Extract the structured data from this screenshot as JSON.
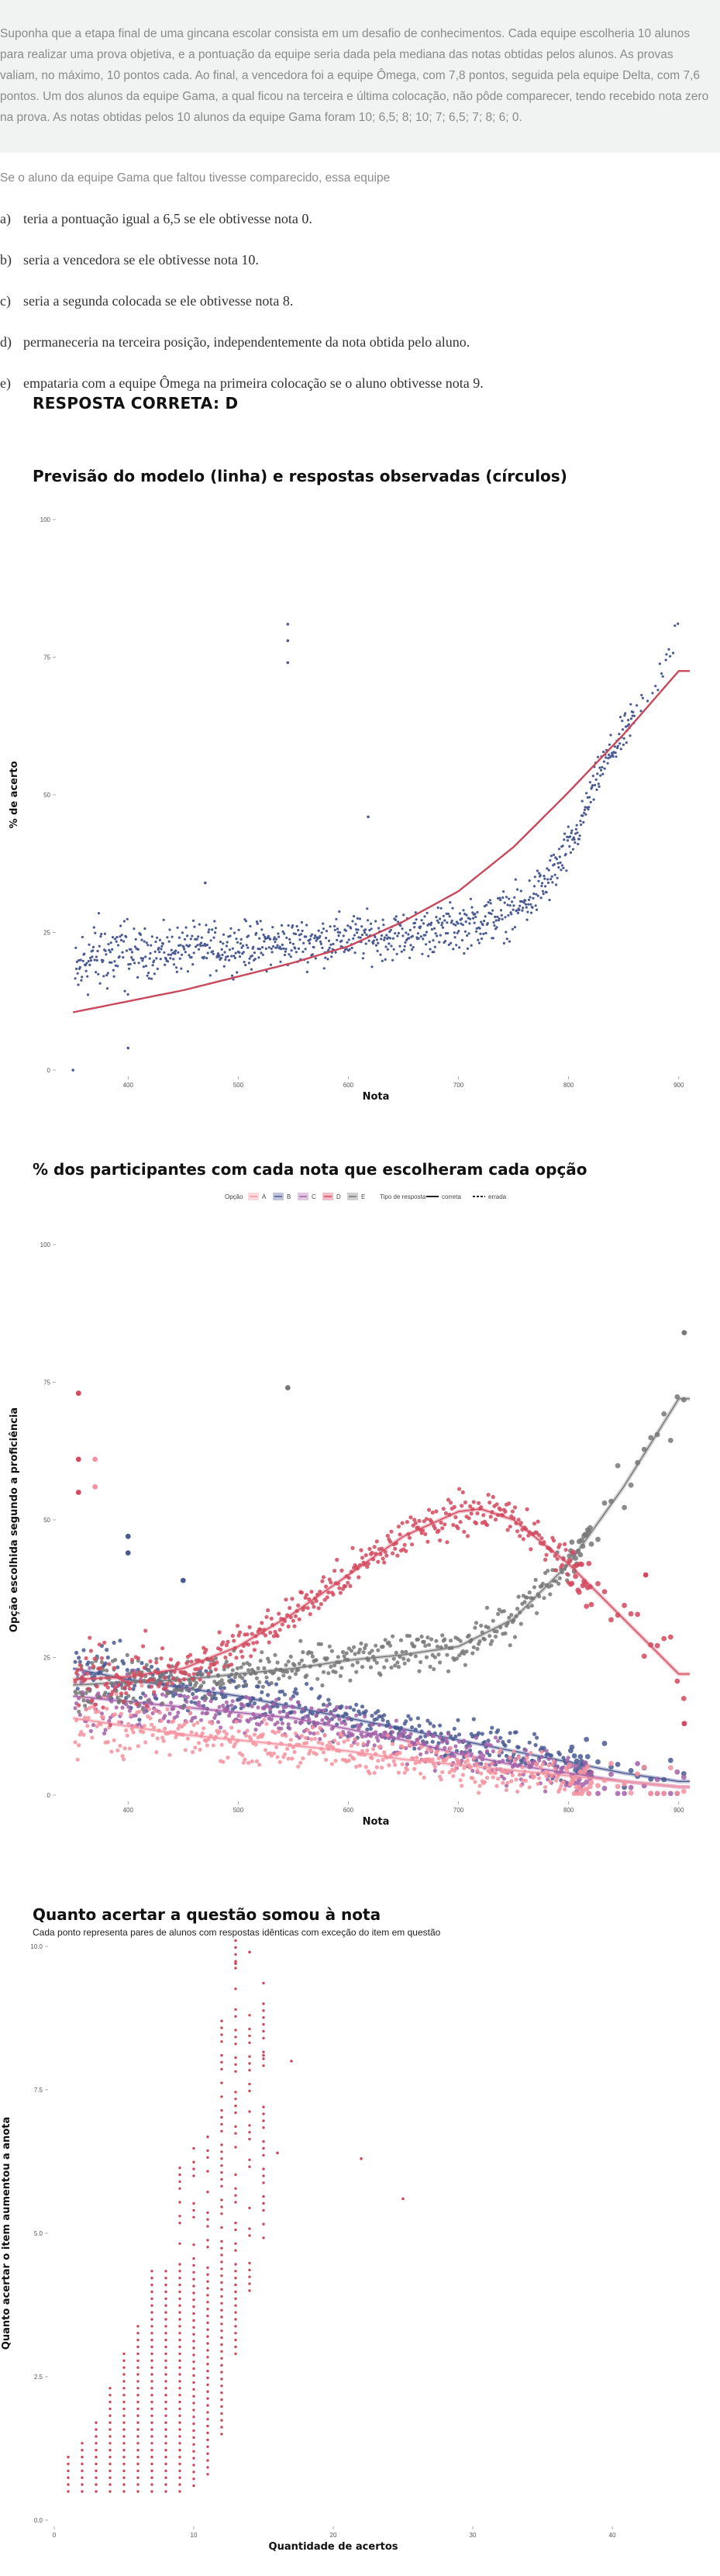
{
  "stem": "Suponha que a etapa final de uma gincana escolar consista em um desafio de conhecimentos. Cada equipe escolheria 10 alunos para realizar uma prova objetiva, e a pontuação da equipe seria dada pela mediana das notas obtidas pelos alunos. As provas valiam, no máximo, 10 pontos cada. Ao final, a vencedora foi a equipe Ômega, com 7,8 pontos, seguida pela equipe Delta, com 7,6 pontos. Um dos alunos da equipe Gama, a qual ficou na terceira e última colocação, não pôde comparecer, tendo recebido nota zero na prova. As notas obtidas pelos 10 alunos da equipe Gama foram 10; 6,5; 8; 10; 7; 6,5; 7; 8; 6; 0.",
  "question": "Se o aluno da equipe Gama que faltou tivesse comparecido, essa equipe",
  "alternatives": [
    {
      "letter": "a)",
      "text": "teria a pontuação igual a 6,5 se ele obtivesse nota 0."
    },
    {
      "letter": "b)",
      "text": "seria a vencedora se ele obtivesse nota 10."
    },
    {
      "letter": "c)",
      "text": "seria a segunda colocada se ele obtivesse nota 8."
    },
    {
      "letter": "d)",
      "text": "permaneceria na terceira posição, independentemente da nota obtida pelo aluno."
    },
    {
      "letter": "e)",
      "text": "empataria com a equipe Ômega na primeira colocação se o aluno obtivesse nota 9."
    }
  ],
  "answer": "RESPOSTA CORRETA: D",
  "chart_data": [
    {
      "type": "scatter",
      "title": "Previsão do modelo (linha) e respostas observadas (círculos)",
      "xlabel": "Nota",
      "ylabel": "% de acerto",
      "xlim": [
        340,
        910
      ],
      "ylim": [
        0,
        100
      ],
      "x_ticks": [
        400,
        500,
        600,
        700,
        800,
        900
      ],
      "y_ticks": [
        0,
        25,
        50,
        75,
        100
      ],
      "colors": {
        "points": "#4a5a92",
        "line": "#c9485b"
      },
      "model_curve": {
        "x": [
          350,
          400,
          450,
          500,
          550,
          600,
          650,
          700,
          750,
          800,
          850,
          900
        ],
        "y": [
          10.5,
          12.5,
          14.5,
          17,
          19.5,
          22.5,
          27,
          32.5,
          40.5,
          50.5,
          61,
          72.5
        ]
      },
      "observed": {
        "x": [
          350,
          360,
          380,
          400,
          450,
          500,
          550,
          600,
          650,
          700,
          720,
          740,
          760,
          780,
          800,
          810,
          820,
          830,
          840,
          850,
          860,
          870,
          880,
          890,
          910
        ],
        "y": [
          15,
          20,
          21,
          21,
          22,
          22.5,
          23,
          24,
          24.5,
          26,
          27,
          28,
          30,
          34,
          40,
          44,
          50,
          55,
          58,
          61,
          64,
          67,
          71,
          76,
          83
        ]
      },
      "outliers": {
        "x": [
          350,
          400,
          470,
          545,
          545,
          545,
          618
        ],
        "y": [
          0,
          4,
          34,
          81,
          78,
          74,
          46
        ]
      }
    },
    {
      "type": "scatter",
      "title": "% dos participantes com cada nota que escolheram cada opção",
      "xlabel": "Nota",
      "ylabel": "Opção escolhida segundo a proficiência",
      "xlim": [
        340,
        910
      ],
      "ylim": [
        0,
        100
      ],
      "x_ticks": [
        400,
        500,
        600,
        700,
        800,
        900
      ],
      "y_ticks": [
        0,
        25,
        50,
        75,
        100
      ],
      "legend": {
        "position": "top",
        "option_title": "Opção",
        "options": [
          "A",
          "B",
          "C",
          "D",
          "E"
        ],
        "type_title": "Tipo de resposta",
        "types": [
          "correta",
          "errada"
        ]
      },
      "series": [
        {
          "name": "A",
          "color": "#f4929f",
          "x": [
            350,
            400,
            450,
            500,
            550,
            600,
            650,
            700,
            750,
            800,
            850,
            900
          ],
          "y": [
            14,
            12.5,
            11,
            10,
            9,
            8,
            6.5,
            5.5,
            4.5,
            3.5,
            2.5,
            1.5
          ]
        },
        {
          "name": "B",
          "color": "#4a5a92",
          "x": [
            350,
            400,
            450,
            500,
            550,
            600,
            650,
            700,
            750,
            800,
            850,
            900
          ],
          "y": [
            23,
            21,
            19.5,
            18,
            16,
            14,
            12,
            10,
            8,
            6,
            4,
            2.5
          ]
        },
        {
          "name": "C",
          "color": "#a560a8",
          "x": [
            350,
            400,
            450,
            500,
            550,
            600,
            650,
            700,
            750,
            800,
            850,
            900
          ],
          "y": [
            18,
            17,
            16,
            15,
            14,
            12,
            10,
            7.5,
            5.5,
            4,
            2.5,
            1.5
          ]
        },
        {
          "name": "D",
          "color": "#d4495e",
          "x": [
            350,
            400,
            450,
            500,
            550,
            600,
            650,
            700,
            720,
            750,
            800,
            850,
            900
          ],
          "y": [
            21,
            21.5,
            23,
            27,
            33,
            40,
            47,
            51.5,
            52,
            50,
            42,
            32,
            22
          ]
        },
        {
          "name": "E",
          "color": "#777777",
          "x": [
            350,
            400,
            450,
            500,
            550,
            600,
            650,
            700,
            750,
            800,
            850,
            900
          ],
          "y": [
            20,
            20.5,
            21,
            22,
            23,
            24.5,
            25.5,
            27,
            32,
            42,
            56,
            72
          ]
        }
      ]
    },
    {
      "type": "scatter",
      "title": "Quanto acertar a questão somou à nota",
      "subtitle": "Cada ponto representa pares de alunos com respostas idênticas com exceção do item em questão",
      "xlabel": "Quantidade de acertos",
      "ylabel": "Quanto acertar o item aumentou a anota",
      "xlim": [
        0,
        40
      ],
      "ylim": [
        0,
        10
      ],
      "x_ticks": [
        0,
        10,
        20,
        30,
        40
      ],
      "y_ticks": [
        0,
        2.5,
        5,
        7.5,
        10
      ],
      "y_tick_labels": [
        "0.0",
        "2.5",
        "5.0",
        "7.5",
        "10.0"
      ],
      "colors": {
        "points": "#c9485b"
      },
      "columns": [
        {
          "x": 1,
          "min": 0.5,
          "max": 1.1
        },
        {
          "x": 2,
          "min": 0.5,
          "max": 1.4
        },
        {
          "x": 3,
          "min": 0.5,
          "max": 1.7
        },
        {
          "x": 4,
          "min": 0.5,
          "max": 2.4
        },
        {
          "x": 5,
          "min": 0.5,
          "max": 2.9
        },
        {
          "x": 6,
          "min": 0.5,
          "max": 3.4
        },
        {
          "x": 7,
          "min": 0.5,
          "max": 4.4
        },
        {
          "x": 8,
          "min": 0.5,
          "max": 4.4
        },
        {
          "x": 9,
          "min": 0.5,
          "max": 6.2
        },
        {
          "x": 10,
          "min": 0.6,
          "max": 6.5
        },
        {
          "x": 11,
          "min": 0.8,
          "max": 6.9
        },
        {
          "x": 12,
          "min": 1.5,
          "max": 8.7
        },
        {
          "x": 13,
          "min": 2.9,
          "max": 10.2
        },
        {
          "x": 14,
          "min": 4,
          "max": 8.8
        },
        {
          "x": 15,
          "min": 4.8,
          "max": 9.4
        }
      ],
      "scattered": {
        "x": [
          13,
          14,
          15,
          16,
          17,
          22,
          25
        ],
        "y": [
          9.7,
          9.9,
          8.1,
          6.4,
          8.0,
          6.3,
          5.6
        ]
      }
    }
  ]
}
